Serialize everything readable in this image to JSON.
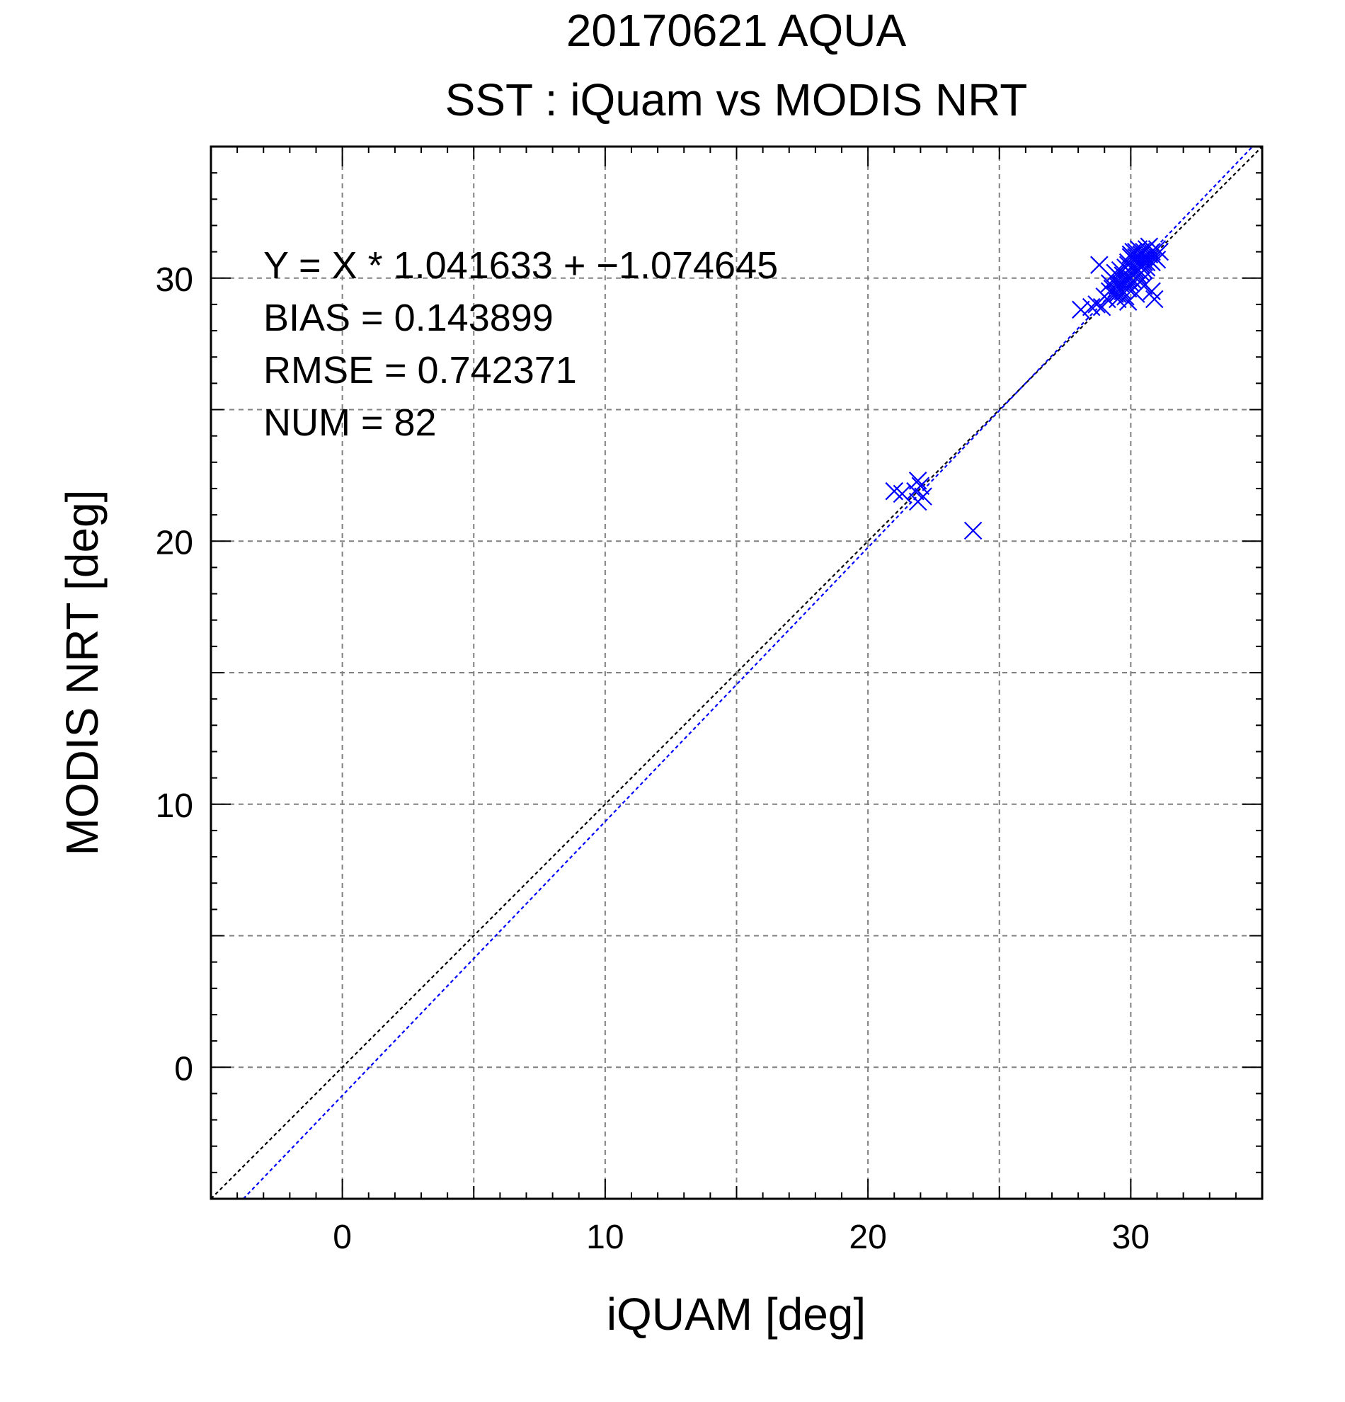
{
  "chart_data": {
    "type": "scatter",
    "title": "20170621 AQUA",
    "subtitle": "SST : iQuam vs MODIS NRT",
    "xlabel": "iQUAM [deg]",
    "ylabel": "MODIS NRT [deg]",
    "xlim": [
      -5,
      35
    ],
    "ylim": [
      -5,
      35
    ],
    "grid": true,
    "major_ticks": [
      0,
      10,
      20,
      30
    ],
    "grid_values": [
      0,
      5,
      10,
      15,
      20,
      25,
      30
    ],
    "tick_labels": {
      "x": [
        "0",
        "10",
        "20",
        "30"
      ],
      "y": [
        "0",
        "10",
        "20",
        "30"
      ]
    },
    "annotations": [
      "Y = X * 1.041633 + −1.074645",
      "BIAS = 0.143899",
      "RMSE = 0.742371",
      "NUM = 82"
    ],
    "fit_line": {
      "slope": 1.041633,
      "intercept": -1.074645,
      "color": "#0000ff"
    },
    "identity_line": {
      "slope": 1,
      "intercept": 0,
      "color": "#000000"
    },
    "marker_color": "#0000ff",
    "series": [
      {
        "marker": "x",
        "points": [
          [
            21.0,
            21.9
          ],
          [
            21.3,
            21.8
          ],
          [
            21.8,
            21.9
          ],
          [
            21.9,
            22.3
          ],
          [
            22.0,
            22.1
          ],
          [
            21.9,
            21.5
          ],
          [
            22.1,
            21.7
          ],
          [
            24.0,
            20.4
          ],
          [
            28.1,
            28.8
          ],
          [
            28.5,
            28.9
          ],
          [
            28.7,
            29.0
          ],
          [
            28.8,
            30.5
          ],
          [
            28.9,
            28.9
          ],
          [
            29.0,
            29.3
          ],
          [
            29.1,
            29.2
          ],
          [
            29.2,
            29.5
          ],
          [
            29.3,
            29.6
          ],
          [
            29.4,
            29.9
          ],
          [
            29.4,
            30.2
          ],
          [
            29.5,
            29.7
          ],
          [
            29.5,
            29.4
          ],
          [
            29.6,
            29.8
          ],
          [
            29.6,
            30.0
          ],
          [
            29.7,
            29.5
          ],
          [
            29.7,
            30.1
          ],
          [
            29.8,
            29.9
          ],
          [
            29.8,
            30.4
          ],
          [
            29.8,
            29.3
          ],
          [
            29.9,
            30.0
          ],
          [
            29.9,
            29.6
          ],
          [
            29.9,
            30.6
          ],
          [
            30.0,
            30.2
          ],
          [
            30.0,
            29.8
          ],
          [
            30.0,
            30.8
          ],
          [
            30.1,
            30.4
          ],
          [
            30.1,
            29.9
          ],
          [
            30.1,
            31.0
          ],
          [
            30.2,
            30.3
          ],
          [
            30.2,
            30.6
          ],
          [
            30.2,
            29.4
          ],
          [
            30.3,
            30.8
          ],
          [
            30.3,
            30.1
          ],
          [
            30.3,
            31.1
          ],
          [
            30.4,
            30.5
          ],
          [
            30.4,
            30.9
          ],
          [
            30.4,
            29.9
          ],
          [
            30.5,
            30.6
          ],
          [
            30.5,
            31.0
          ],
          [
            30.5,
            30.3
          ],
          [
            30.6,
            30.8
          ],
          [
            30.6,
            30.4
          ],
          [
            30.7,
            30.9
          ],
          [
            30.7,
            30.7
          ],
          [
            30.8,
            31.0
          ],
          [
            30.8,
            29.5
          ],
          [
            30.9,
            29.2
          ],
          [
            30.9,
            30.8
          ],
          [
            31.0,
            30.7
          ],
          [
            31.1,
            31.0
          ],
          [
            29.5,
            29.2
          ],
          [
            29.6,
            30.3
          ],
          [
            29.9,
            30.5
          ],
          [
            30.0,
            30.0
          ],
          [
            30.1,
            30.7
          ],
          [
            30.2,
            31.0
          ],
          [
            30.3,
            30.6
          ],
          [
            30.4,
            30.2
          ],
          [
            30.5,
            30.8
          ],
          [
            30.6,
            31.1
          ],
          [
            30.6,
            30.6
          ],
          [
            30.7,
            31.2
          ],
          [
            29.8,
            29.8
          ],
          [
            29.4,
            29.4
          ],
          [
            29.2,
            29.8
          ],
          [
            30.0,
            30.9
          ],
          [
            30.4,
            31.0
          ],
          [
            30.2,
            30.8
          ],
          [
            30.8,
            30.6
          ],
          [
            29.9,
            29.1
          ],
          [
            30.5,
            29.7
          ],
          [
            31.0,
            31.1
          ],
          [
            30.3,
            30.3
          ]
        ]
      }
    ]
  }
}
